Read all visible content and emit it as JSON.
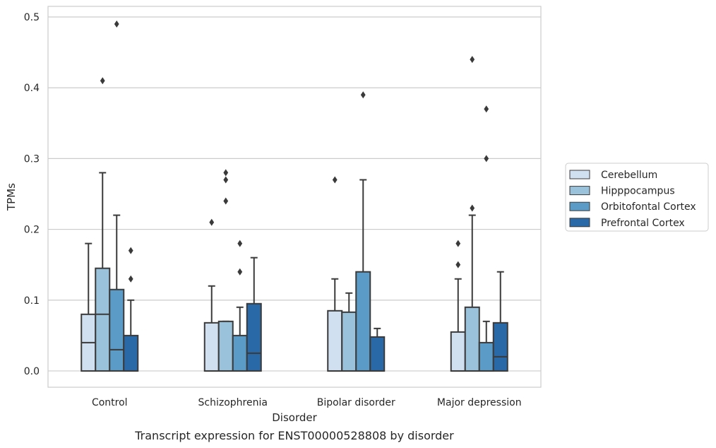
{
  "chart_data": {
    "type": "box",
    "caption": "Transcript expression for ENST00000528808 by disorder",
    "xlabel": "Disorder",
    "ylabel": "TPMs",
    "ylim": [
      -0.023,
      0.515
    ],
    "yticks": [
      "0.0",
      "0.1",
      "0.2",
      "0.3",
      "0.4",
      "0.5"
    ],
    "grid": true,
    "legend_position": "right",
    "categories": [
      "Control",
      "Schizophrenia",
      "Bipolar disorder",
      "Major depression"
    ],
    "series": [
      {
        "name": "Cerebellum",
        "color": "#d1e0f0",
        "boxes": [
          {
            "q1": 0.0,
            "median": 0.04,
            "q3": 0.08,
            "whisker_low": 0.0,
            "whisker_high": 0.18,
            "outliers": []
          },
          {
            "q1": 0.0,
            "median": 0.0,
            "q3": 0.068,
            "whisker_low": 0.0,
            "whisker_high": 0.12,
            "outliers": [
              0.21
            ]
          },
          {
            "q1": 0.0,
            "median": 0.0,
            "q3": 0.085,
            "whisker_low": 0.0,
            "whisker_high": 0.13,
            "outliers": [
              0.27
            ]
          },
          {
            "q1": 0.0,
            "median": 0.0,
            "q3": 0.055,
            "whisker_low": 0.0,
            "whisker_high": 0.13,
            "outliers": [
              0.15,
              0.18
            ]
          }
        ]
      },
      {
        "name": "Hipppocampus",
        "color": "#9ac3db",
        "boxes": [
          {
            "q1": 0.0,
            "median": 0.08,
            "q3": 0.145,
            "whisker_low": 0.0,
            "whisker_high": 0.28,
            "outliers": [
              0.41
            ]
          },
          {
            "q1": 0.0,
            "median": 0.0,
            "q3": 0.07,
            "whisker_low": 0.0,
            "whisker_high": 0.07,
            "outliers": [
              0.24,
              0.27,
              0.28
            ]
          },
          {
            "q1": 0.0,
            "median": 0.0,
            "q3": 0.083,
            "whisker_low": 0.0,
            "whisker_high": 0.11,
            "outliers": []
          },
          {
            "q1": 0.0,
            "median": 0.0,
            "q3": 0.09,
            "whisker_low": 0.0,
            "whisker_high": 0.22,
            "outliers": [
              0.23,
              0.44
            ]
          }
        ]
      },
      {
        "name": "Orbitofontal Cortex",
        "color": "#5a9bc7",
        "boxes": [
          {
            "q1": 0.0,
            "median": 0.03,
            "q3": 0.115,
            "whisker_low": 0.0,
            "whisker_high": 0.22,
            "outliers": [
              0.49
            ]
          },
          {
            "q1": 0.0,
            "median": 0.0,
            "q3": 0.05,
            "whisker_low": 0.0,
            "whisker_high": 0.09,
            "outliers": [
              0.14,
              0.18
            ]
          },
          {
            "q1": 0.0,
            "median": 0.0,
            "q3": 0.14,
            "whisker_low": 0.0,
            "whisker_high": 0.27,
            "outliers": [
              0.39
            ]
          },
          {
            "q1": 0.0,
            "median": 0.0,
            "q3": 0.04,
            "whisker_low": 0.0,
            "whisker_high": 0.07,
            "outliers": [
              0.3,
              0.37
            ]
          }
        ]
      },
      {
        "name": "Prefrontal Cortex",
        "color": "#2a69a8",
        "boxes": [
          {
            "q1": 0.0,
            "median": 0.0,
            "q3": 0.05,
            "whisker_low": 0.0,
            "whisker_high": 0.1,
            "outliers": [
              0.13,
              0.17
            ]
          },
          {
            "q1": 0.0,
            "median": 0.025,
            "q3": 0.095,
            "whisker_low": 0.0,
            "whisker_high": 0.16,
            "outliers": []
          },
          {
            "q1": 0.0,
            "median": 0.0,
            "q3": 0.048,
            "whisker_low": 0.0,
            "whisker_high": 0.06,
            "outliers": []
          },
          {
            "q1": 0.0,
            "median": 0.02,
            "q3": 0.068,
            "whisker_low": 0.0,
            "whisker_high": 0.14,
            "outliers": []
          }
        ]
      }
    ]
  }
}
